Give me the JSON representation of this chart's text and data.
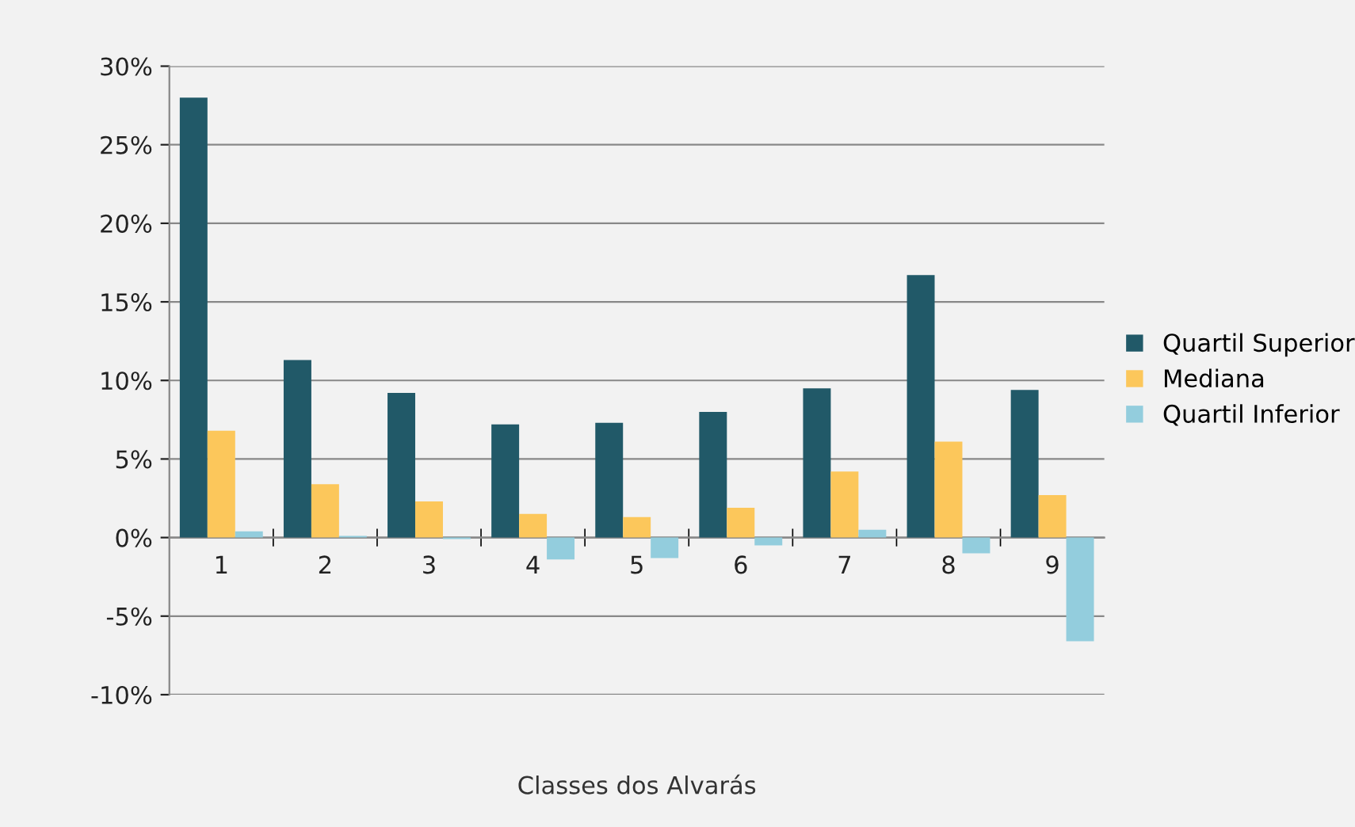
{
  "chart_data": {
    "type": "bar",
    "xlabel": "Classes dos Alvarás",
    "categories": [
      "1",
      "2",
      "3",
      "4",
      "5",
      "6",
      "7",
      "8",
      "9"
    ],
    "series": [
      {
        "name": "Quartil Superior",
        "color": "#215968",
        "values": [
          28.0,
          11.3,
          9.2,
          7.2,
          7.3,
          8.0,
          9.5,
          16.7,
          9.4
        ]
      },
      {
        "name": "Mediana",
        "color": "#fcc75b",
        "values": [
          6.8,
          3.4,
          2.3,
          1.5,
          1.3,
          1.9,
          4.2,
          6.1,
          2.7
        ]
      },
      {
        "name": "Quartil Inferior",
        "color": "#93cddd",
        "values": [
          0.4,
          0.1,
          -0.1,
          -1.4,
          -1.3,
          -0.5,
          0.5,
          -1.0,
          -6.6
        ]
      }
    ],
    "ylim": [
      -10,
      30
    ],
    "yticks": [
      {
        "value": -10,
        "label": "-10%"
      },
      {
        "value": -5,
        "label": "-5%"
      },
      {
        "value": 0,
        "label": "0%"
      },
      {
        "value": 5,
        "label": "5%"
      },
      {
        "value": 10,
        "label": "10%"
      },
      {
        "value": 15,
        "label": "15%"
      },
      {
        "value": 20,
        "label": "20%"
      },
      {
        "value": 25,
        "label": "25%"
      },
      {
        "value": 30,
        "label": "30%"
      }
    ],
    "grid": "y",
    "legend": "right"
  }
}
